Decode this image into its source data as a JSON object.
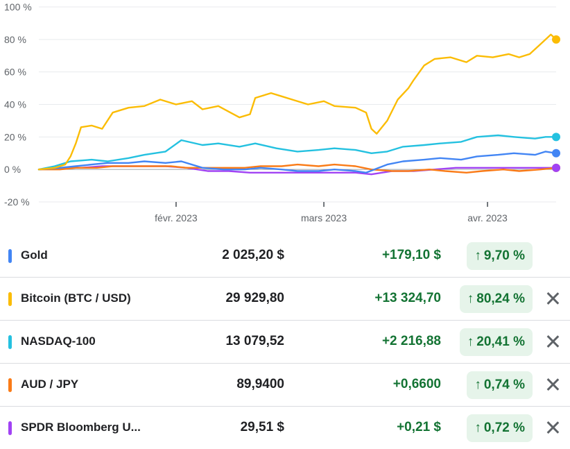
{
  "chart_data": {
    "type": "line",
    "y_unit": "%",
    "ylim": [
      -20,
      100
    ],
    "y_ticks": [
      100,
      80,
      60,
      40,
      20,
      0,
      -20
    ],
    "y_tick_labels": [
      "100 %",
      "80 %",
      "60 %",
      "40 %",
      "20 %",
      "0 %",
      "-20 %"
    ],
    "x_range": [
      "2023-01-06",
      "2023-04-14"
    ],
    "x_ticks": [
      {
        "date": "2023-02-01",
        "label": "févr. 2023"
      },
      {
        "date": "2023-03-01",
        "label": "mars 2023"
      },
      {
        "date": "2023-04-01",
        "label": "avr. 2023"
      }
    ],
    "grid": true,
    "series": [
      {
        "name": "Gold",
        "color": "#4285f4",
        "end_value": 10,
        "points": [
          [
            "2023-01-06",
            0
          ],
          [
            "2023-01-10",
            1
          ],
          [
            "2023-01-13",
            2
          ],
          [
            "2023-01-16",
            3
          ],
          [
            "2023-01-19",
            4
          ],
          [
            "2023-01-23",
            4
          ],
          [
            "2023-01-26",
            5
          ],
          [
            "2023-01-30",
            4
          ],
          [
            "2023-02-02",
            5
          ],
          [
            "2023-02-06",
            1
          ],
          [
            "2023-02-10",
            0
          ],
          [
            "2023-02-14",
            0
          ],
          [
            "2023-02-17",
            1
          ],
          [
            "2023-02-21",
            0
          ],
          [
            "2023-02-24",
            -1
          ],
          [
            "2023-02-28",
            -1
          ],
          [
            "2023-03-03",
            0
          ],
          [
            "2023-03-07",
            -1
          ],
          [
            "2023-03-09",
            -2
          ],
          [
            "2023-03-13",
            3
          ],
          [
            "2023-03-16",
            5
          ],
          [
            "2023-03-20",
            6
          ],
          [
            "2023-03-23",
            7
          ],
          [
            "2023-03-27",
            6
          ],
          [
            "2023-03-30",
            8
          ],
          [
            "2023-04-03",
            9
          ],
          [
            "2023-04-06",
            10
          ],
          [
            "2023-04-10",
            9
          ],
          [
            "2023-04-12",
            11
          ],
          [
            "2023-04-14",
            10
          ]
        ]
      },
      {
        "name": "Bitcoin (BTC / USD)",
        "color": "#fbbc04",
        "end_value": 80,
        "points": [
          [
            "2023-01-06",
            0
          ],
          [
            "2023-01-09",
            1
          ],
          [
            "2023-01-11",
            3
          ],
          [
            "2023-01-12",
            8
          ],
          [
            "2023-01-13",
            16
          ],
          [
            "2023-01-14",
            26
          ],
          [
            "2023-01-16",
            27
          ],
          [
            "2023-01-18",
            25
          ],
          [
            "2023-01-20",
            35
          ],
          [
            "2023-01-23",
            38
          ],
          [
            "2023-01-26",
            39
          ],
          [
            "2023-01-29",
            43
          ],
          [
            "2023-02-01",
            40
          ],
          [
            "2023-02-04",
            42
          ],
          [
            "2023-02-06",
            37
          ],
          [
            "2023-02-09",
            39
          ],
          [
            "2023-02-13",
            32
          ],
          [
            "2023-02-15",
            34
          ],
          [
            "2023-02-16",
            44
          ],
          [
            "2023-02-19",
            47
          ],
          [
            "2023-02-21",
            45
          ],
          [
            "2023-02-23",
            43
          ],
          [
            "2023-02-26",
            40
          ],
          [
            "2023-03-01",
            42
          ],
          [
            "2023-03-03",
            39
          ],
          [
            "2023-03-07",
            38
          ],
          [
            "2023-03-09",
            35
          ],
          [
            "2023-03-10",
            25
          ],
          [
            "2023-03-11",
            22
          ],
          [
            "2023-03-13",
            30
          ],
          [
            "2023-03-15",
            43
          ],
          [
            "2023-03-17",
            50
          ],
          [
            "2023-03-18",
            55
          ],
          [
            "2023-03-20",
            64
          ],
          [
            "2023-03-22",
            68
          ],
          [
            "2023-03-25",
            69
          ],
          [
            "2023-03-28",
            66
          ],
          [
            "2023-03-30",
            70
          ],
          [
            "2023-04-02",
            69
          ],
          [
            "2023-04-05",
            71
          ],
          [
            "2023-04-07",
            69
          ],
          [
            "2023-04-09",
            71
          ],
          [
            "2023-04-11",
            77
          ],
          [
            "2023-04-13",
            83
          ],
          [
            "2023-04-14",
            80
          ]
        ]
      },
      {
        "name": "NASDAQ-100",
        "color": "#24c1e0",
        "end_value": 20,
        "points": [
          [
            "2023-01-06",
            0
          ],
          [
            "2023-01-09",
            2
          ],
          [
            "2023-01-12",
            5
          ],
          [
            "2023-01-16",
            6
          ],
          [
            "2023-01-19",
            5
          ],
          [
            "2023-01-23",
            7
          ],
          [
            "2023-01-26",
            9
          ],
          [
            "2023-01-30",
            11
          ],
          [
            "2023-02-02",
            18
          ],
          [
            "2023-02-06",
            15
          ],
          [
            "2023-02-09",
            16
          ],
          [
            "2023-02-13",
            14
          ],
          [
            "2023-02-16",
            16
          ],
          [
            "2023-02-20",
            13
          ],
          [
            "2023-02-24",
            11
          ],
          [
            "2023-02-28",
            12
          ],
          [
            "2023-03-03",
            13
          ],
          [
            "2023-03-07",
            12
          ],
          [
            "2023-03-10",
            10
          ],
          [
            "2023-03-13",
            11
          ],
          [
            "2023-03-16",
            14
          ],
          [
            "2023-03-20",
            15
          ],
          [
            "2023-03-23",
            16
          ],
          [
            "2023-03-27",
            17
          ],
          [
            "2023-03-30",
            20
          ],
          [
            "2023-04-03",
            21
          ],
          [
            "2023-04-06",
            20
          ],
          [
            "2023-04-10",
            19
          ],
          [
            "2023-04-12",
            20
          ],
          [
            "2023-04-14",
            20
          ]
        ]
      },
      {
        "name": "AUD / JPY",
        "color": "#fa7b17",
        "end_value": 1,
        "points": [
          [
            "2023-01-06",
            0
          ],
          [
            "2023-01-10",
            0
          ],
          [
            "2023-01-13",
            1
          ],
          [
            "2023-01-17",
            1
          ],
          [
            "2023-01-20",
            2
          ],
          [
            "2023-01-24",
            2
          ],
          [
            "2023-01-27",
            2
          ],
          [
            "2023-01-31",
            2
          ],
          [
            "2023-02-03",
            1
          ],
          [
            "2023-02-07",
            1
          ],
          [
            "2023-02-10",
            1
          ],
          [
            "2023-02-14",
            1
          ],
          [
            "2023-02-17",
            2
          ],
          [
            "2023-02-21",
            2
          ],
          [
            "2023-02-24",
            3
          ],
          [
            "2023-02-28",
            2
          ],
          [
            "2023-03-03",
            3
          ],
          [
            "2023-03-07",
            2
          ],
          [
            "2023-03-10",
            0
          ],
          [
            "2023-03-14",
            -1
          ],
          [
            "2023-03-17",
            -1
          ],
          [
            "2023-03-21",
            0
          ],
          [
            "2023-03-24",
            -1
          ],
          [
            "2023-03-28",
            -2
          ],
          [
            "2023-03-31",
            -1
          ],
          [
            "2023-04-04",
            0
          ],
          [
            "2023-04-07",
            -1
          ],
          [
            "2023-04-11",
            0
          ],
          [
            "2023-04-14",
            1
          ]
        ]
      },
      {
        "name": "SPDR Bloomberg U...",
        "color": "#a142f4",
        "end_value": 1,
        "points": [
          [
            "2023-01-06",
            0
          ],
          [
            "2023-01-10",
            1
          ],
          [
            "2023-01-14",
            1
          ],
          [
            "2023-01-18",
            2
          ],
          [
            "2023-01-22",
            2
          ],
          [
            "2023-01-26",
            2
          ],
          [
            "2023-01-30",
            2
          ],
          [
            "2023-02-03",
            1
          ],
          [
            "2023-02-07",
            -1
          ],
          [
            "2023-02-11",
            -1
          ],
          [
            "2023-02-15",
            -2
          ],
          [
            "2023-02-19",
            -2
          ],
          [
            "2023-02-23",
            -2
          ],
          [
            "2023-02-27",
            -2
          ],
          [
            "2023-03-03",
            -2
          ],
          [
            "2023-03-07",
            -2
          ],
          [
            "2023-03-10",
            -3
          ],
          [
            "2023-03-14",
            -1
          ],
          [
            "2023-03-18",
            -1
          ],
          [
            "2023-03-22",
            0
          ],
          [
            "2023-03-26",
            1
          ],
          [
            "2023-03-30",
            1
          ],
          [
            "2023-04-03",
            1
          ],
          [
            "2023-04-07",
            1
          ],
          [
            "2023-04-11",
            1
          ],
          [
            "2023-04-14",
            1
          ]
        ]
      }
    ]
  },
  "rows": [
    {
      "name": "Gold",
      "price": "2 025,20 $",
      "change": "+179,10 $",
      "pct": "9,70 %",
      "color": "#4285f4",
      "removable": false
    },
    {
      "name": "Bitcoin (BTC / USD)",
      "price": "29 929,80",
      "change": "+13 324,70",
      "pct": "80,24 %",
      "color": "#fbbc04",
      "removable": true
    },
    {
      "name": "NASDAQ-100",
      "price": "13 079,52",
      "change": "+2 216,88",
      "pct": "20,41 %",
      "color": "#24c1e0",
      "removable": true
    },
    {
      "name": "AUD / JPY",
      "price": "89,9400",
      "change": "+0,6600",
      "pct": "0,74 %",
      "color": "#fa7b17",
      "removable": true
    },
    {
      "name": "SPDR Bloomberg U...",
      "price": "29,51 $",
      "change": "+0,21 $",
      "pct": "0,72 %",
      "color": "#a142f4",
      "removable": true
    }
  ],
  "icons": {
    "up": "arrow-up-icon",
    "remove": "close-icon"
  },
  "arrow_glyph": "↑"
}
